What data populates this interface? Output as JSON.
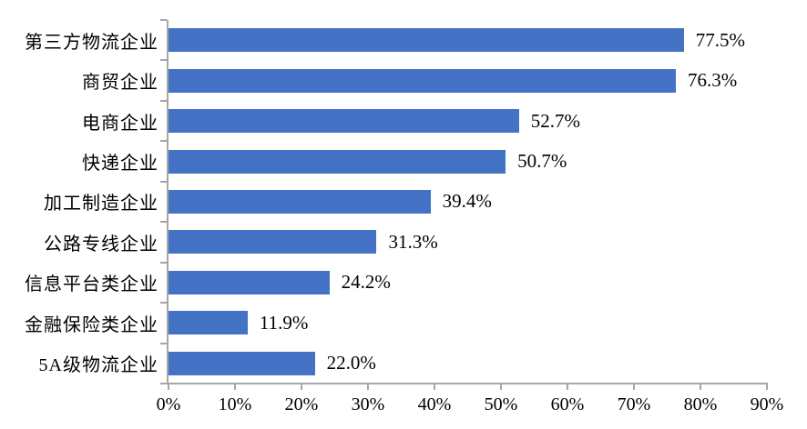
{
  "chart_data": {
    "type": "bar",
    "orientation": "horizontal",
    "title": "",
    "xlabel": "",
    "ylabel": "",
    "categories": [
      "第三方物流企业",
      "商贸企业",
      "电商企业",
      "快递企业",
      "加工制造企业",
      "公路专线企业",
      "信息平台类企业",
      "金融保险类企业",
      "5A级物流企业"
    ],
    "values": [
      77.5,
      76.3,
      52.7,
      50.7,
      39.4,
      31.3,
      24.2,
      11.9,
      22.0
    ],
    "data_labels": [
      "77.5%",
      "76.3%",
      "52.7%",
      "50.7%",
      "39.4%",
      "31.3%",
      "24.2%",
      "11.9%",
      "22.0%"
    ],
    "x_tick_labels": [
      "0%",
      "10%",
      "20%",
      "30%",
      "40%",
      "50%",
      "60%",
      "70%",
      "80%",
      "90%"
    ],
    "xlim": [
      0,
      90
    ],
    "grid": false,
    "legend": false,
    "bar_color": "#4472c4",
    "axis_color": "#a6a6a6",
    "text_color": "#000000",
    "background_color": "#ffffff"
  }
}
